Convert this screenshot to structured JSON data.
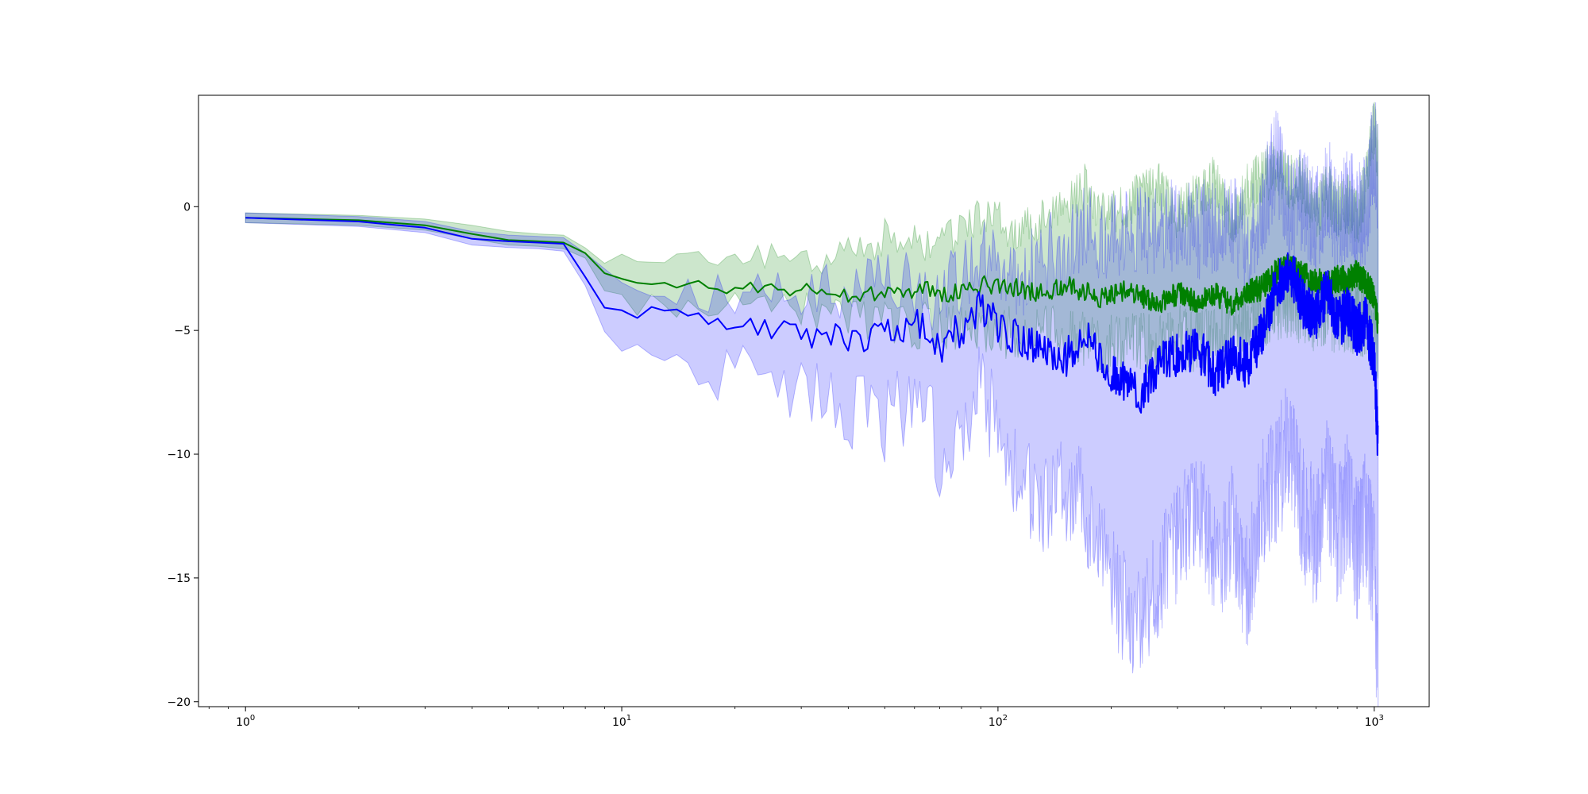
{
  "chart_data": {
    "type": "line",
    "title": "",
    "xlabel": "",
    "ylabel": "",
    "xscale": "log",
    "xlim": [
      0.75,
      1400
    ],
    "ylim": [
      -20.2,
      4.5
    ],
    "grid": false,
    "legend": "none",
    "x_ticks": [
      {
        "value": 1,
        "base": "10",
        "exp": "0"
      },
      {
        "value": 10,
        "base": "10",
        "exp": "1"
      },
      {
        "value": 100,
        "base": "10",
        "exp": "2"
      },
      {
        "value": 1000,
        "base": "10",
        "exp": "3"
      }
    ],
    "y_ticks": [
      {
        "value": 0,
        "label": "0"
      },
      {
        "value": -5,
        "label": "−5"
      },
      {
        "value": -10,
        "label": "−10"
      },
      {
        "value": -15,
        "label": "−15"
      },
      {
        "value": -20,
        "label": "−20"
      }
    ],
    "series": [
      {
        "color": "#008000",
        "band_color": "#008000",
        "band_opacity": 0.2,
        "points": [
          [
            1,
            -0.45
          ],
          [
            2,
            -0.55
          ],
          [
            3,
            -0.75
          ],
          [
            4,
            -1.1
          ],
          [
            5,
            -1.35
          ],
          [
            6,
            -1.4
          ],
          [
            7,
            -1.45
          ],
          [
            8,
            -1.8
          ],
          [
            9,
            -2.8
          ],
          [
            10,
            -3.0
          ],
          [
            11,
            -3.05
          ],
          [
            12,
            -3.2
          ],
          [
            14,
            -3.15
          ],
          [
            16,
            -3.1
          ],
          [
            18,
            -3.3
          ],
          [
            20,
            -3.4
          ],
          [
            22,
            -3.3
          ],
          [
            25,
            -3.1
          ],
          [
            28,
            -3.35
          ],
          [
            32,
            -3.3
          ],
          [
            36,
            -3.5
          ],
          [
            40,
            -3.6
          ],
          [
            45,
            -3.5
          ],
          [
            50,
            -3.6
          ],
          [
            55,
            -3.4
          ],
          [
            60,
            -3.5
          ],
          [
            65,
            -3.3
          ],
          [
            70,
            -3.5
          ],
          [
            75,
            -3.6
          ],
          [
            80,
            -3.3
          ],
          [
            90,
            -3.2
          ],
          [
            100,
            -3.1
          ],
          [
            115,
            -3.3
          ],
          [
            130,
            -3.5
          ],
          [
            150,
            -3.2
          ],
          [
            170,
            -3.4
          ],
          [
            190,
            -3.7
          ],
          [
            210,
            -3.4
          ],
          [
            240,
            -3.6
          ],
          [
            270,
            -3.9
          ],
          [
            300,
            -3.5
          ],
          [
            340,
            -3.8
          ],
          [
            380,
            -3.6
          ],
          [
            420,
            -3.9
          ],
          [
            460,
            -3.4
          ],
          [
            500,
            -3.3
          ],
          [
            550,
            -2.6
          ],
          [
            600,
            -2.4
          ],
          [
            650,
            -2.8
          ],
          [
            700,
            -3.0
          ],
          [
            750,
            -3.2
          ],
          [
            800,
            -2.9
          ],
          [
            850,
            -3.0
          ],
          [
            900,
            -2.7
          ],
          [
            950,
            -3.1
          ],
          [
            1000,
            -3.6
          ],
          [
            1024,
            -4.8
          ]
        ],
        "band": [
          [
            1,
            -0.35,
            -0.6
          ],
          [
            2,
            -0.4,
            -0.65
          ],
          [
            3,
            -0.5,
            -0.95
          ],
          [
            4,
            -0.75,
            -1.3
          ],
          [
            5,
            -1.0,
            -1.55
          ],
          [
            6,
            -1.1,
            -1.6
          ],
          [
            7,
            -1.15,
            -1.7
          ],
          [
            8,
            -1.5,
            -2.1
          ],
          [
            9,
            -1.9,
            -3.4
          ],
          [
            10,
            -2.0,
            -3.8
          ],
          [
            12,
            -1.9,
            -4.0
          ],
          [
            14,
            -1.9,
            -4.1
          ],
          [
            16,
            -2.0,
            -4.1
          ],
          [
            18,
            -2.2,
            -4.0
          ],
          [
            20,
            -2.0,
            -3.9
          ],
          [
            22,
            -2.1,
            -4.0
          ],
          [
            25,
            -1.9,
            -3.8
          ],
          [
            28,
            -2.3,
            -4.1
          ],
          [
            32,
            -2.1,
            -4.2
          ],
          [
            36,
            -2.2,
            -4.3
          ],
          [
            40,
            -1.5,
            -4.4
          ],
          [
            45,
            -2.0,
            -4.5
          ],
          [
            50,
            -1.2,
            -4.6
          ],
          [
            55,
            -1.8,
            -4.7
          ],
          [
            60,
            -1.1,
            -4.8
          ],
          [
            65,
            -1.6,
            -4.8
          ],
          [
            70,
            -1.0,
            -4.9
          ],
          [
            75,
            -1.3,
            -4.9
          ],
          [
            80,
            -0.9,
            -5.0
          ],
          [
            90,
            -0.5,
            -5.1
          ],
          [
            100,
            -0.6,
            -5.1
          ],
          [
            115,
            -1.2,
            -5.0
          ],
          [
            130,
            -0.3,
            -5.0
          ],
          [
            150,
            -0.2,
            -5.2
          ],
          [
            170,
            0.8,
            -5.3
          ],
          [
            190,
            -0.3,
            -5.6
          ],
          [
            210,
            -0.2,
            -5.5
          ],
          [
            240,
            0.5,
            -5.5
          ],
          [
            270,
            0.8,
            -5.6
          ],
          [
            300,
            -0.4,
            -5.3
          ],
          [
            340,
            0.6,
            -5.4
          ],
          [
            380,
            1.0,
            -5.3
          ],
          [
            420,
            -0.5,
            -5.4
          ],
          [
            460,
            0.7,
            -4.8
          ],
          [
            500,
            1.2,
            -4.5
          ],
          [
            550,
            1.6,
            -4.0
          ],
          [
            600,
            1.0,
            -3.8
          ],
          [
            650,
            0.9,
            -4.2
          ],
          [
            700,
            -0.3,
            -4.5
          ],
          [
            750,
            0.6,
            -4.3
          ],
          [
            800,
            -0.2,
            -4.4
          ],
          [
            850,
            0.1,
            -4.3
          ],
          [
            900,
            -0.5,
            -4.5
          ],
          [
            950,
            1.0,
            -4.6
          ],
          [
            1000,
            3.3,
            -5.0
          ],
          [
            1024,
            2.0,
            -5.6
          ]
        ]
      },
      {
        "color": "#0000ff",
        "band_color": "#0000ff",
        "band_opacity": 0.2,
        "points": [
          [
            1,
            -0.45
          ],
          [
            2,
            -0.6
          ],
          [
            3,
            -0.85
          ],
          [
            4,
            -1.3
          ],
          [
            5,
            -1.4
          ],
          [
            6,
            -1.45
          ],
          [
            7,
            -1.5
          ],
          [
            8,
            -3.1
          ],
          [
            9,
            -3.8
          ],
          [
            10,
            -4.0
          ],
          [
            11,
            -4.2
          ],
          [
            12,
            -4.1
          ],
          [
            14,
            -4.15
          ],
          [
            16,
            -4.3
          ],
          [
            18,
            -4.9
          ],
          [
            20,
            -5.1
          ],
          [
            22,
            -4.7
          ],
          [
            25,
            -5.0
          ],
          [
            28,
            -5.0
          ],
          [
            32,
            -5.2
          ],
          [
            36,
            -5.1
          ],
          [
            40,
            -5.6
          ],
          [
            45,
            -5.3
          ],
          [
            50,
            -4.8
          ],
          [
            55,
            -4.9
          ],
          [
            60,
            -4.7
          ],
          [
            65,
            -4.9
          ],
          [
            70,
            -5.8
          ],
          [
            75,
            -4.9
          ],
          [
            80,
            -5.2
          ],
          [
            90,
            -4.0
          ],
          [
            100,
            -4.8
          ],
          [
            115,
            -5.4
          ],
          [
            130,
            -5.8
          ],
          [
            150,
            -6.2
          ],
          [
            170,
            -5.0
          ],
          [
            190,
            -6.5
          ],
          [
            210,
            -6.9
          ],
          [
            240,
            -7.5
          ],
          [
            270,
            -6.3
          ],
          [
            300,
            -6.0
          ],
          [
            340,
            -5.7
          ],
          [
            380,
            -6.8
          ],
          [
            420,
            -6.0
          ],
          [
            460,
            -6.4
          ],
          [
            500,
            -5.2
          ],
          [
            550,
            -3.2
          ],
          [
            600,
            -2.6
          ],
          [
            650,
            -4.0
          ],
          [
            700,
            -4.5
          ],
          [
            750,
            -3.4
          ],
          [
            800,
            -4.8
          ],
          [
            850,
            -4.2
          ],
          [
            900,
            -5.0
          ],
          [
            950,
            -4.6
          ],
          [
            1000,
            -6.2
          ],
          [
            1024,
            -9.8
          ]
        ],
        "band": [
          [
            1,
            -0.3,
            -0.55
          ],
          [
            2,
            -0.4,
            -0.75
          ],
          [
            3,
            -0.6,
            -1.05
          ],
          [
            4,
            -1.0,
            -1.55
          ],
          [
            5,
            -1.15,
            -1.65
          ],
          [
            6,
            -1.2,
            -1.7
          ],
          [
            7,
            -1.25,
            -1.8
          ],
          [
            8,
            -2.3,
            -3.9
          ],
          [
            9,
            -2.8,
            -4.9
          ],
          [
            10,
            -3.0,
            -5.3
          ],
          [
            11,
            -3.2,
            -5.5
          ],
          [
            12,
            -3.0,
            -5.6
          ],
          [
            14,
            -3.2,
            -5.7
          ],
          [
            16,
            -3.4,
            -6.0
          ],
          [
            18,
            -3.5,
            -6.9
          ],
          [
            20,
            -3.3,
            -6.9
          ],
          [
            22,
            -3.1,
            -6.8
          ],
          [
            25,
            -3.2,
            -7.0
          ],
          [
            28,
            -3.5,
            -7.5
          ],
          [
            32,
            -3.3,
            -7.3
          ],
          [
            36,
            -3.6,
            -7.1
          ],
          [
            40,
            -3.8,
            -8.6
          ],
          [
            45,
            -3.4,
            -8.2
          ],
          [
            50,
            -2.9,
            -8.7
          ],
          [
            55,
            -3.3,
            -8.1
          ],
          [
            60,
            -3.1,
            -8.6
          ],
          [
            65,
            -3.3,
            -8.0
          ],
          [
            70,
            -4.0,
            -10.7
          ],
          [
            75,
            -2.8,
            -9.5
          ],
          [
            80,
            -3.0,
            -10.0
          ],
          [
            90,
            -1.8,
            -7.0
          ],
          [
            100,
            -2.6,
            -9.5
          ],
          [
            115,
            -3.2,
            -11.0
          ],
          [
            130,
            -1.8,
            -12.5
          ],
          [
            150,
            -2.0,
            -11.5
          ],
          [
            170,
            -0.6,
            -12.0
          ],
          [
            190,
            -1.5,
            -14.0
          ],
          [
            210,
            -1.0,
            -16.0
          ],
          [
            240,
            -0.8,
            -17.0
          ],
          [
            270,
            -1.2,
            -15.0
          ],
          [
            300,
            -0.5,
            -13.5
          ],
          [
            340,
            -1.0,
            -12.0
          ],
          [
            380,
            -0.6,
            -14.5
          ],
          [
            420,
            -0.8,
            -13.0
          ],
          [
            460,
            -1.5,
            -15.5
          ],
          [
            500,
            -0.2,
            -12.0
          ],
          [
            550,
            2.0,
            -11.0
          ],
          [
            600,
            -0.3,
            -9.5
          ],
          [
            650,
            0.5,
            -12.5
          ],
          [
            700,
            -0.8,
            -13.5
          ],
          [
            750,
            0.8,
            -11.0
          ],
          [
            800,
            -1.0,
            -13.5
          ],
          [
            850,
            0.2,
            -12.0
          ],
          [
            900,
            -0.5,
            -14.0
          ],
          [
            950,
            -0.2,
            -12.5
          ],
          [
            1000,
            2.5,
            -14.5
          ],
          [
            1024,
            1.0,
            -20.0
          ]
        ]
      }
    ]
  }
}
